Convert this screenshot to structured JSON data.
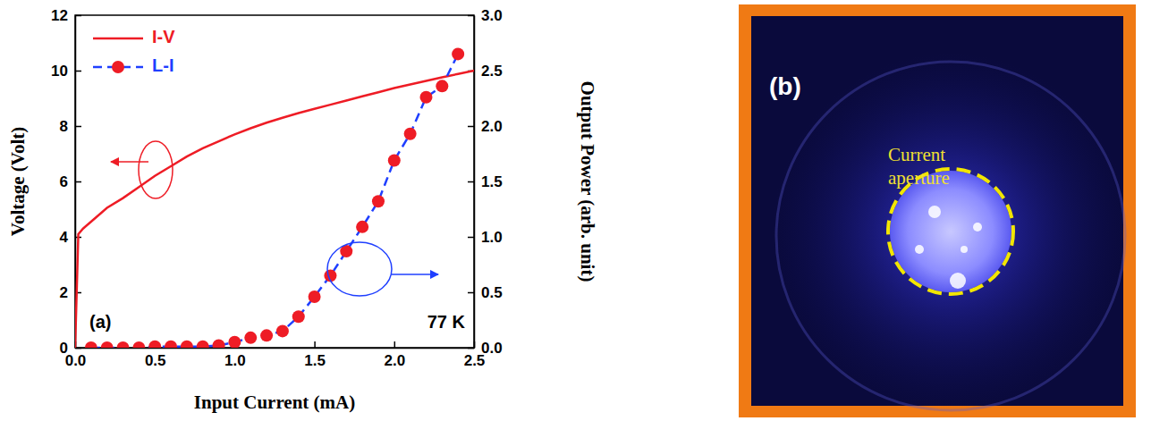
{
  "chart_data": {
    "type": "line",
    "xlabel": "Input Current (mA)",
    "ylabel": "Voltage (Volt)",
    "y2label": "Output Power (arb. unit)",
    "annotations": [
      "(a)",
      "77 K"
    ],
    "xlim": [
      0,
      2.5
    ],
    "xticks": [
      {
        "value": 0,
        "label": "0.0"
      },
      {
        "value": 0.5,
        "label": "0.5"
      },
      {
        "value": 1,
        "label": "1.0"
      },
      {
        "value": 1.5,
        "label": "1.5"
      },
      {
        "value": 2,
        "label": "2.0"
      },
      {
        "value": 2.5,
        "label": "2.5"
      }
    ],
    "ylim": [
      0,
      12
    ],
    "yticks": [
      0,
      2,
      4,
      6,
      8,
      10,
      12
    ],
    "y2lim": [
      0,
      3
    ],
    "y2ticks": [
      {
        "value": 0,
        "label": "0.0"
      },
      {
        "value": 0.5,
        "label": "0.5"
      },
      {
        "value": 1,
        "label": "1.0"
      },
      {
        "value": 1.5,
        "label": "1.5"
      },
      {
        "value": 2,
        "label": "2.0"
      },
      {
        "value": 2.5,
        "label": "2.5"
      },
      {
        "value": 3,
        "label": "3.0"
      }
    ],
    "legend": "upper left",
    "series": [
      {
        "name": "I-V",
        "color": "#ee1c25",
        "line_style": "solid",
        "axis": "y",
        "x": [
          0,
          0.02,
          0.05,
          0.1,
          0.2,
          0.3,
          0.4,
          0.5,
          0.6,
          0.7,
          0.8,
          0.9,
          1.0,
          1.1,
          1.2,
          1.3,
          1.4,
          1.5,
          1.6,
          1.7,
          1.8,
          1.9,
          2.0,
          2.1,
          2.2,
          2.3,
          2.4,
          2.5
        ],
        "values": [
          0,
          4.1,
          4.3,
          4.55,
          5.05,
          5.4,
          5.8,
          6.2,
          6.55,
          6.9,
          7.2,
          7.45,
          7.7,
          7.92,
          8.12,
          8.3,
          8.47,
          8.62,
          8.77,
          8.92,
          9.07,
          9.22,
          9.37,
          9.5,
          9.63,
          9.76,
          9.88,
          10.0
        ]
      },
      {
        "name": "L-I",
        "color": "#1f3fff",
        "line_style": "dashed",
        "marker": "circle",
        "axis": "y2",
        "x": [
          0.1,
          0.2,
          0.3,
          0.4,
          0.5,
          0.6,
          0.7,
          0.8,
          0.9,
          1.0,
          1.1,
          1.2,
          1.3,
          1.4,
          1.5,
          1.6,
          1.7,
          1.8,
          1.9,
          2.0,
          2.1,
          2.2,
          2.3,
          2.4
        ],
        "values": [
          0.0,
          0.0,
          0.0,
          0.0,
          0.01,
          0.01,
          0.01,
          0.01,
          0.02,
          0.05,
          0.09,
          0.11,
          0.15,
          0.28,
          0.46,
          0.65,
          0.87,
          1.09,
          1.32,
          1.69,
          1.93,
          2.26,
          2.36,
          2.65
        ]
      }
    ]
  },
  "photo": {
    "label": "(b)",
    "annotation": "Current aperture"
  }
}
